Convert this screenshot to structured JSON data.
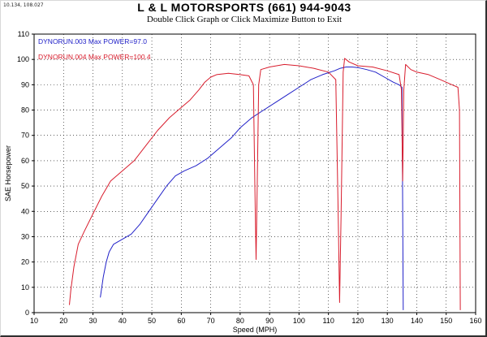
{
  "corner_label": "10.134, 108.027",
  "title": "L & L MOTORSPORTS  (661) 944-9043",
  "subtitle": "Double Click Graph or Click Maximize Button to Exit",
  "chart_data": {
    "type": "line",
    "xlabel": "Speed (MPH)",
    "ylabel": "SAE Horsepower",
    "xlim": [
      10,
      160
    ],
    "ylim": [
      0,
      110
    ],
    "x_ticks": [
      10,
      20,
      30,
      40,
      50,
      60,
      70,
      80,
      90,
      100,
      110,
      120,
      130,
      140,
      150,
      160
    ],
    "y_ticks": [
      0,
      10,
      20,
      30,
      40,
      50,
      60,
      70,
      80,
      90,
      100,
      110
    ],
    "grid": "dotted",
    "legend_position": "top-left",
    "series": [
      {
        "name": "DYNORUN.003  Max POWER=97.0",
        "color": "#2020c8",
        "points": [
          [
            32.5,
            6
          ],
          [
            33.5,
            14
          ],
          [
            34.5,
            20
          ],
          [
            35.5,
            24
          ],
          [
            37,
            27
          ],
          [
            40,
            29
          ],
          [
            43,
            31
          ],
          [
            46,
            35
          ],
          [
            49,
            40
          ],
          [
            52,
            45
          ],
          [
            55,
            50
          ],
          [
            58,
            54
          ],
          [
            61,
            56
          ],
          [
            65,
            58
          ],
          [
            69,
            61
          ],
          [
            73,
            65
          ],
          [
            77,
            69
          ],
          [
            80,
            73
          ],
          [
            84,
            77
          ],
          [
            88,
            80
          ],
          [
            92,
            83
          ],
          [
            96,
            86
          ],
          [
            100,
            89
          ],
          [
            104,
            92
          ],
          [
            108,
            94
          ],
          [
            112,
            95.5
          ],
          [
            114,
            96.5
          ],
          [
            116,
            97
          ],
          [
            118,
            97
          ],
          [
            120,
            96.8
          ],
          [
            123,
            96
          ],
          [
            126,
            95
          ],
          [
            129,
            93
          ],
          [
            132,
            91
          ],
          [
            134,
            90
          ],
          [
            135,
            89
          ],
          [
            135.4,
            1
          ]
        ]
      },
      {
        "name": "DYNORUN.004  Max POWER=100.4",
        "color": "#d81c2c",
        "points": [
          [
            22,
            3
          ],
          [
            22.5,
            9
          ],
          [
            23.5,
            18
          ],
          [
            25,
            27
          ],
          [
            27,
            32
          ],
          [
            30,
            39
          ],
          [
            33,
            46
          ],
          [
            36,
            52
          ],
          [
            40,
            56
          ],
          [
            44,
            60
          ],
          [
            48,
            66
          ],
          [
            52,
            72
          ],
          [
            56,
            77
          ],
          [
            60,
            81
          ],
          [
            63,
            84
          ],
          [
            66,
            88
          ],
          [
            68,
            91
          ],
          [
            70,
            93
          ],
          [
            72,
            94
          ],
          [
            76,
            94.5
          ],
          [
            80,
            94
          ],
          [
            83,
            93.5
          ],
          [
            84.5,
            90
          ],
          [
            85,
            50
          ],
          [
            85.4,
            21
          ],
          [
            85.8,
            50
          ],
          [
            86.3,
            90
          ],
          [
            87,
            96
          ],
          [
            90,
            97
          ],
          [
            95,
            98
          ],
          [
            100,
            97.5
          ],
          [
            105,
            96.5
          ],
          [
            110,
            95
          ],
          [
            112.5,
            92
          ],
          [
            113.3,
            40
          ],
          [
            113.8,
            4
          ],
          [
            114.3,
            40
          ],
          [
            115,
            95
          ],
          [
            115.5,
            100.4
          ],
          [
            117,
            99
          ],
          [
            120,
            97.5
          ],
          [
            125,
            97
          ],
          [
            130,
            95.5
          ],
          [
            134,
            94
          ],
          [
            134.8,
            88
          ],
          [
            135.2,
            52
          ],
          [
            135.6,
            88
          ],
          [
            136.2,
            98
          ],
          [
            138,
            96
          ],
          [
            140,
            95
          ],
          [
            144,
            94
          ],
          [
            148,
            92
          ],
          [
            152,
            90
          ],
          [
            154,
            89
          ],
          [
            154.5,
            80
          ],
          [
            154.8,
            1
          ]
        ]
      }
    ]
  }
}
